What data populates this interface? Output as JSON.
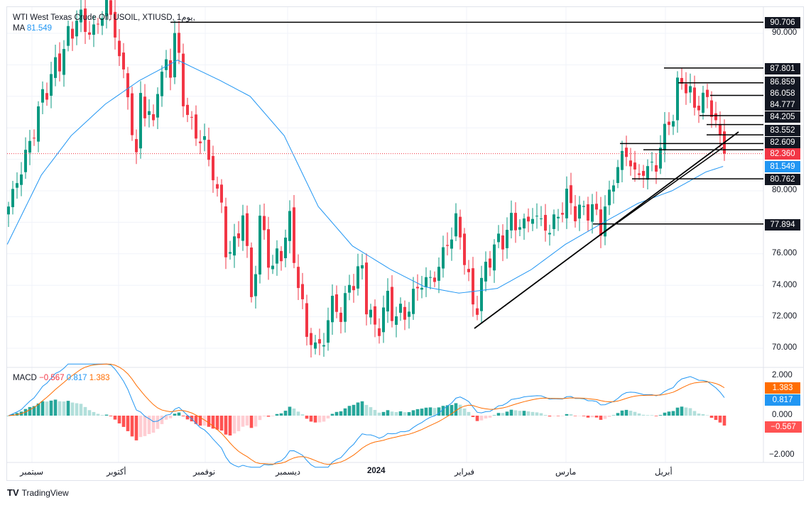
{
  "header": {
    "symbol_line": "WTI West Texas Crude Oil, USOIL, XTIUSD, 1يوم,",
    "ma_label": "MA",
    "ma_value": "81.549"
  },
  "macd_legend": {
    "label": "MACD",
    "hist": "−0.567",
    "macd": "0.817",
    "signal": "1.383"
  },
  "colors": {
    "up": "#089981",
    "down": "#f23645",
    "ma": "#2196f3",
    "macd": "#2196f3",
    "signal": "#ff6d00",
    "last_price": "#f23645"
  },
  "price_axis": {
    "ticks": [
      "90.000",
      "80.000",
      "76.000",
      "74.000",
      "72.000",
      "70.000"
    ]
  },
  "macd_axis": {
    "ticks": [
      "2.000",
      "0.000",
      "−2.000"
    ]
  },
  "price_labels": [
    "90.706",
    "87.801",
    "86.859",
    "86.058",
    "84.777",
    "84.205",
    "83.552",
    "82.609",
    "82.360",
    "81.549",
    "80.762",
    "77.894"
  ],
  "macd_labels": {
    "signal": "1.383",
    "macd": "0.817",
    "hist": "−0.567"
  },
  "time_axis": [
    "سبتمبر",
    "أكتوبر",
    "نوفمبر",
    "ديسمبر",
    "2024",
    "فبراير",
    "مارس",
    "أبريل"
  ],
  "brand": "TradingView",
  "chart_data": {
    "type": "candlestick",
    "title": "WTI West Texas Crude Oil, USOIL, XTIUSD, 1يوم",
    "ylim": [
      68.6,
      92.5
    ],
    "macd_ylim": [
      -2.4,
      2.4
    ],
    "last_price": 82.36,
    "ma_last": 81.549,
    "levels": [
      90.706,
      87.801,
      86.859,
      86.058,
      84.777,
      84.205,
      83.552,
      82.609,
      80.762,
      77.894
    ],
    "close_trace_by_bar": [
      [
        0,
        79
      ],
      [
        5,
        83
      ],
      [
        8,
        86
      ],
      [
        13,
        89
      ],
      [
        16,
        91
      ],
      [
        20,
        90
      ],
      [
        23,
        92
      ],
      [
        25,
        90
      ],
      [
        28,
        86
      ],
      [
        30,
        82
      ],
      [
        31,
        86
      ],
      [
        34,
        84
      ],
      [
        35,
        87
      ],
      [
        38,
        88
      ],
      [
        39,
        90
      ],
      [
        41,
        86
      ],
      [
        43,
        84
      ],
      [
        46,
        83
      ],
      [
        48,
        81
      ],
      [
        50,
        79
      ],
      [
        51,
        76
      ],
      [
        54,
        77
      ],
      [
        55,
        79
      ],
      [
        57,
        73
      ],
      [
        59,
        78
      ],
      [
        60,
        77
      ],
      [
        62,
        75
      ],
      [
        65,
        77
      ],
      [
        66,
        78
      ],
      [
        68,
        74
      ],
      [
        70,
        71
      ],
      [
        72,
        70
      ],
      [
        74,
        70.5
      ],
      [
        76,
        73
      ],
      [
        78,
        72
      ],
      [
        80,
        74
      ],
      [
        83,
        75
      ],
      [
        84,
        73
      ],
      [
        86,
        71
      ],
      [
        89,
        73
      ],
      [
        91,
        72
      ],
      [
        94,
        72.5
      ],
      [
        96,
        74
      ],
      [
        100,
        74.5
      ],
      [
        102,
        76
      ],
      [
        105,
        78
      ],
      [
        107,
        76
      ],
      [
        109,
        72.5
      ],
      [
        110,
        73
      ],
      [
        113,
        76
      ],
      [
        116,
        77
      ],
      [
        118,
        78
      ],
      [
        121,
        77.8
      ],
      [
        123,
        78.5
      ],
      [
        125,
        78
      ],
      [
        127,
        77.5
      ],
      [
        130,
        79
      ],
      [
        131,
        79.5
      ],
      [
        134,
        78.5
      ],
      [
        136,
        79
      ],
      [
        139,
        78
      ],
      [
        141,
        79.5
      ],
      [
        142,
        81
      ],
      [
        143,
        81.5
      ],
      [
        145,
        82.5
      ],
      [
        147,
        81
      ],
      [
        148,
        81
      ],
      [
        150,
        81.5
      ],
      [
        152,
        81.5
      ],
      [
        153,
        83
      ],
      [
        156,
        85
      ],
      [
        157,
        86.5
      ],
      [
        159,
        87
      ],
      [
        161,
        85
      ],
      [
        162,
        86
      ],
      [
        164,
        85.5
      ],
      [
        165,
        85.5
      ],
      [
        167,
        83
      ],
      [
        168,
        82.36
      ]
    ],
    "ma_trace_by_bar": [
      [
        0,
        76.6
      ],
      [
        8,
        81
      ],
      [
        15,
        83.5
      ],
      [
        23,
        85.5
      ],
      [
        31,
        87
      ],
      [
        40,
        88.3
      ],
      [
        50,
        87
      ],
      [
        57,
        86
      ],
      [
        65,
        83.5
      ],
      [
        73,
        79
      ],
      [
        81,
        76.5
      ],
      [
        90,
        75
      ],
      [
        98,
        73.9
      ],
      [
        106,
        73.5
      ],
      [
        115,
        73.8
      ],
      [
        123,
        75
      ],
      [
        131,
        76.6
      ],
      [
        140,
        78
      ],
      [
        148,
        79.2
      ],
      [
        156,
        80
      ],
      [
        164,
        81.2
      ],
      [
        168,
        81.549
      ]
    ]
  }
}
